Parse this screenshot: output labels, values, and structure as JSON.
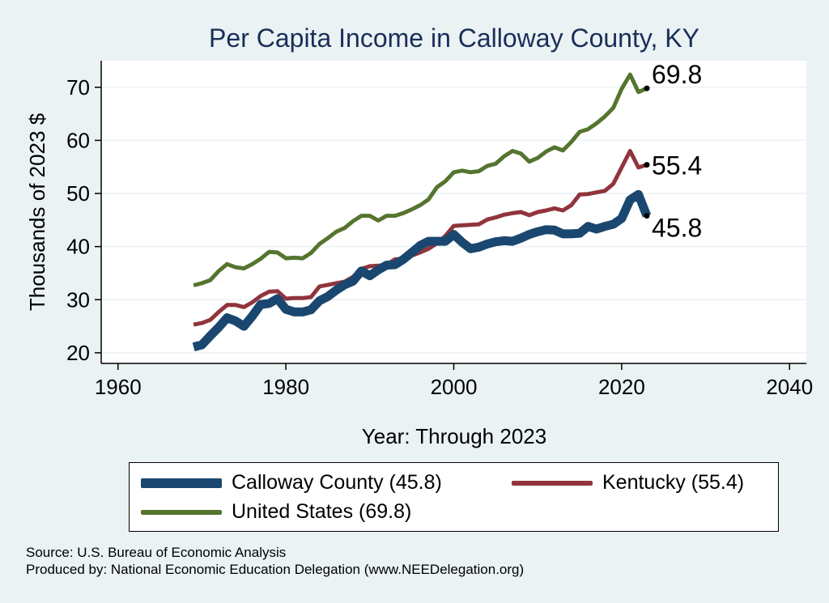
{
  "chart_data": {
    "type": "line",
    "title": "Per Capita Income in Calloway County, KY",
    "xlabel": "Year: Through 2023",
    "ylabel": "Thousands of 2023 $",
    "xlim": [
      1958,
      2042
    ],
    "ylim": [
      18,
      75
    ],
    "xticks": [
      1960,
      1980,
      2000,
      2020,
      2040
    ],
    "yticks": [
      20,
      30,
      40,
      50,
      60,
      70
    ],
    "grid": true,
    "legend_position": "bottom",
    "x": [
      1969,
      1970,
      1971,
      1972,
      1973,
      1974,
      1975,
      1976,
      1977,
      1978,
      1979,
      1980,
      1981,
      1982,
      1983,
      1984,
      1985,
      1986,
      1987,
      1988,
      1989,
      1990,
      1991,
      1992,
      1993,
      1994,
      1995,
      1996,
      1997,
      1998,
      1999,
      2000,
      2001,
      2002,
      2003,
      2004,
      2005,
      2006,
      2007,
      2008,
      2009,
      2010,
      2011,
      2012,
      2013,
      2014,
      2015,
      2016,
      2017,
      2018,
      2019,
      2020,
      2021,
      2022,
      2023
    ],
    "series": [
      {
        "name": "Calloway County (45.8)",
        "color": "#1a476f",
        "end_label": "45.8",
        "values": [
          21.1,
          21.5,
          23.2,
          24.8,
          26.6,
          26.0,
          25.0,
          26.9,
          29.1,
          29.3,
          30.2,
          28.2,
          27.7,
          27.7,
          28.1,
          29.8,
          30.6,
          31.8,
          32.8,
          33.5,
          35.4,
          34.5,
          35.6,
          36.5,
          36.6,
          37.6,
          38.9,
          40.2,
          41.0,
          41.0,
          41.0,
          42.3,
          40.8,
          39.6,
          39.9,
          40.5,
          40.9,
          41.1,
          41.0,
          41.6,
          42.3,
          42.8,
          43.2,
          43.1,
          42.4,
          42.4,
          42.5,
          43.8,
          43.3,
          43.8,
          44.2,
          45.3,
          48.8,
          49.8,
          45.8
        ]
      },
      {
        "name": "Kentucky (55.4)",
        "color": "#90353b",
        "end_label": "55.4",
        "values": [
          25.3,
          25.6,
          26.2,
          27.7,
          29.0,
          29.0,
          28.6,
          29.5,
          30.7,
          31.5,
          31.6,
          30.2,
          30.3,
          30.3,
          30.5,
          32.5,
          32.8,
          33.1,
          33.4,
          34.3,
          35.8,
          36.3,
          36.4,
          36.6,
          37.6,
          37.7,
          38.3,
          38.9,
          39.6,
          40.6,
          42.0,
          43.9,
          44.0,
          44.1,
          44.2,
          45.1,
          45.5,
          46.0,
          46.3,
          46.5,
          45.9,
          46.5,
          46.8,
          47.2,
          46.8,
          47.8,
          49.8,
          49.9,
          50.2,
          50.5,
          51.8,
          54.9,
          58.0,
          54.9,
          55.4
        ]
      },
      {
        "name": "United States (69.8)",
        "color": "#55752f",
        "end_label": "69.8",
        "values": [
          32.7,
          33.1,
          33.7,
          35.4,
          36.7,
          36.1,
          35.9,
          36.7,
          37.7,
          39.0,
          38.9,
          37.8,
          37.9,
          37.8,
          38.8,
          40.5,
          41.6,
          42.8,
          43.5,
          44.8,
          45.8,
          45.8,
          44.9,
          45.8,
          45.8,
          46.3,
          47.0,
          47.8,
          48.9,
          51.2,
          52.3,
          54.0,
          54.3,
          54.0,
          54.2,
          55.2,
          55.6,
          57.0,
          58.0,
          57.5,
          56.0,
          56.7,
          57.9,
          58.7,
          58.1,
          59.7,
          61.6,
          62.1,
          63.2,
          64.5,
          66.1,
          69.7,
          72.4,
          69.1,
          69.8
        ]
      }
    ]
  },
  "source": {
    "line1": "Source: U.S. Bureau of Economic Analysis",
    "line2": "Produced by: National Economic Education Delegation (www.NEEDelegation.org)"
  }
}
